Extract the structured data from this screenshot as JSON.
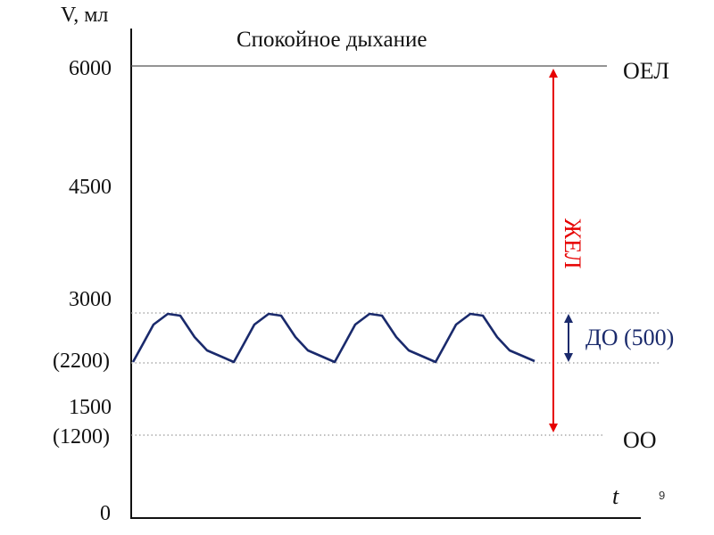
{
  "title": "Спокойное дыхание",
  "y_axis_label": "V, мл",
  "x_axis_label": "t",
  "y_ticks": [
    {
      "value": 6000,
      "label": "6000"
    },
    {
      "value": 4500,
      "label": "4500"
    },
    {
      "value": 3000,
      "label": "3000"
    },
    {
      "value": 2200,
      "label": "(2200)"
    },
    {
      "value": 1500,
      "label": "1500"
    },
    {
      "value": 1200,
      "label": "(1200)"
    },
    {
      "value": 0,
      "label": "0"
    }
  ],
  "levels": {
    "oel": {
      "label": "ОЕЛ"
    },
    "oo": {
      "label": "ОО"
    }
  },
  "brackets": {
    "zhel": {
      "label": "ЖЕЛ"
    },
    "do": {
      "label": "ДО (500)"
    }
  },
  "page_number": "9",
  "colors": {
    "axis": "#111111",
    "curve": "#1a2a6c",
    "zhel": "#e60000",
    "do_arrow": "#1a2a6c",
    "dotted": "#999999"
  }
}
